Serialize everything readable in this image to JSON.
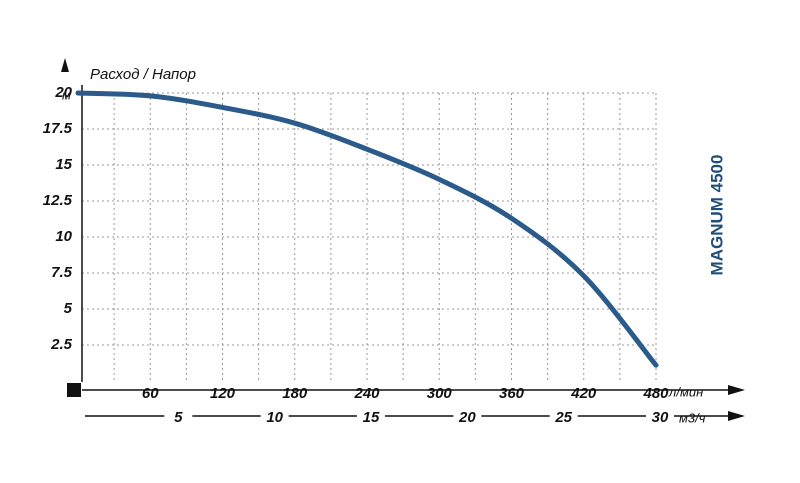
{
  "chart_data": {
    "type": "line",
    "y_label": "Расход / Напор",
    "y_unit": "м",
    "x_unit": "л/мин",
    "x2_unit": "м3/ч",
    "model": "MAGNUM 4500",
    "x": [
      0,
      60,
      120,
      180,
      240,
      300,
      360,
      420,
      480
    ],
    "series": [
      {
        "name": "MAGNUM 4500",
        "color": "#2a5b8a",
        "values": [
          20,
          19.8,
          19,
          17.9,
          16.1,
          14,
          11.3,
          7.3,
          1.1
        ]
      }
    ],
    "xlim": [
      0,
      480
    ],
    "xticks": [
      60,
      120,
      180,
      240,
      300,
      360,
      420,
      480
    ],
    "x2lim": [
      0,
      30
    ],
    "x2ticks": [
      5,
      10,
      15,
      20,
      25,
      30
    ],
    "ylim": [
      0,
      20
    ],
    "yticks": [
      2.5,
      5,
      7.5,
      10,
      12.5,
      15,
      17.5,
      20
    ],
    "grid": true
  }
}
